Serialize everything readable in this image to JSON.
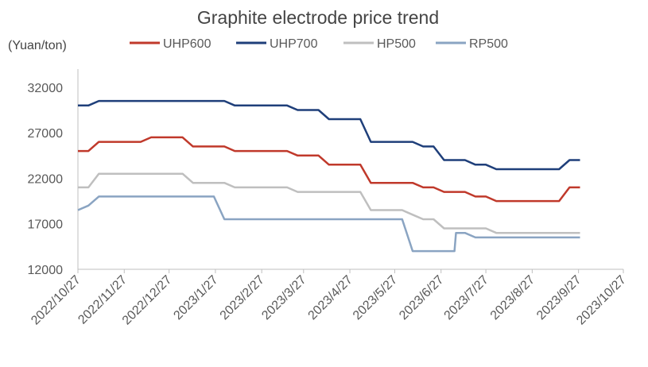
{
  "chart_data": {
    "type": "line",
    "title": "Graphite electrode price trend",
    "ylabel": "(Yuan/ton)",
    "xlabel": "",
    "ylim": [
      12000,
      34000
    ],
    "yticks": [
      12000,
      17000,
      22000,
      27000,
      32000
    ],
    "xticks": [
      "2022/10/27",
      "2022/11/27",
      "2022/12/27",
      "2023/1/27",
      "2023/2/27",
      "2023/3/27",
      "2023/4/27",
      "2023/5/27",
      "2023/6/27",
      "2023/7/27",
      "2023/8/27",
      "2023/9/27",
      "2023/10/27"
    ],
    "legend": "top",
    "grid": false,
    "series": [
      {
        "name": "UHP600",
        "color": "#c0392b",
        "points": [
          [
            "2022/10/27",
            25000
          ],
          [
            "2022/11/3",
            25000
          ],
          [
            "2022/11/10",
            26000
          ],
          [
            "2022/11/17",
            26000
          ],
          [
            "2022/11/24",
            26000
          ],
          [
            "2022/12/1",
            26000
          ],
          [
            "2022/12/8",
            26000
          ],
          [
            "2022/12/15",
            26500
          ],
          [
            "2022/12/22",
            26500
          ],
          [
            "2022/12/29",
            26500
          ],
          [
            "2023/1/5",
            26500
          ],
          [
            "2023/1/12",
            25500
          ],
          [
            "2023/1/19",
            25500
          ],
          [
            "2023/1/26",
            25500
          ],
          [
            "2023/2/2",
            25500
          ],
          [
            "2023/2/9",
            25000
          ],
          [
            "2023/2/16",
            25000
          ],
          [
            "2023/2/23",
            25000
          ],
          [
            "2023/3/2",
            25000
          ],
          [
            "2023/3/9",
            25000
          ],
          [
            "2023/3/16",
            25000
          ],
          [
            "2023/3/23",
            24500
          ],
          [
            "2023/3/30",
            24500
          ],
          [
            "2023/4/6",
            24500
          ],
          [
            "2023/4/13",
            23500
          ],
          [
            "2023/4/20",
            23500
          ],
          [
            "2023/4/27",
            23500
          ],
          [
            "2023/5/4",
            23500
          ],
          [
            "2023/5/11",
            21500
          ],
          [
            "2023/5/18",
            21500
          ],
          [
            "2023/5/25",
            21500
          ],
          [
            "2023/6/1",
            21500
          ],
          [
            "2023/6/8",
            21500
          ],
          [
            "2023/6/15",
            21000
          ],
          [
            "2023/6/22",
            21000
          ],
          [
            "2023/6/29",
            20500
          ],
          [
            "2023/7/6",
            20500
          ],
          [
            "2023/7/13",
            20500
          ],
          [
            "2023/7/20",
            20000
          ],
          [
            "2023/7/27",
            20000
          ],
          [
            "2023/8/3",
            19500
          ],
          [
            "2023/8/10",
            19500
          ],
          [
            "2023/8/17",
            19500
          ],
          [
            "2023/8/24",
            19500
          ],
          [
            "2023/8/31",
            19500
          ],
          [
            "2023/9/7",
            19500
          ],
          [
            "2023/9/14",
            19500
          ],
          [
            "2023/9/21",
            21000
          ],
          [
            "2023/9/28",
            21000
          ]
        ]
      },
      {
        "name": "UHP700",
        "color": "#1f3f7a",
        "points": [
          [
            "2022/10/27",
            30000
          ],
          [
            "2022/11/3",
            30000
          ],
          [
            "2022/11/10",
            30500
          ],
          [
            "2022/11/17",
            30500
          ],
          [
            "2022/11/24",
            30500
          ],
          [
            "2022/12/1",
            30500
          ],
          [
            "2022/12/8",
            30500
          ],
          [
            "2022/12/15",
            30500
          ],
          [
            "2022/12/22",
            30500
          ],
          [
            "2022/12/29",
            30500
          ],
          [
            "2023/1/5",
            30500
          ],
          [
            "2023/1/12",
            30500
          ],
          [
            "2023/1/19",
            30500
          ],
          [
            "2023/1/26",
            30500
          ],
          [
            "2023/2/2",
            30500
          ],
          [
            "2023/2/9",
            30000
          ],
          [
            "2023/2/16",
            30000
          ],
          [
            "2023/2/23",
            30000
          ],
          [
            "2023/3/2",
            30000
          ],
          [
            "2023/3/9",
            30000
          ],
          [
            "2023/3/16",
            30000
          ],
          [
            "2023/3/23",
            29500
          ],
          [
            "2023/3/30",
            29500
          ],
          [
            "2023/4/6",
            29500
          ],
          [
            "2023/4/13",
            28500
          ],
          [
            "2023/4/20",
            28500
          ],
          [
            "2023/4/27",
            28500
          ],
          [
            "2023/5/4",
            28500
          ],
          [
            "2023/5/11",
            26000
          ],
          [
            "2023/5/18",
            26000
          ],
          [
            "2023/5/25",
            26000
          ],
          [
            "2023/6/1",
            26000
          ],
          [
            "2023/6/8",
            26000
          ],
          [
            "2023/6/15",
            25500
          ],
          [
            "2023/6/22",
            25500
          ],
          [
            "2023/6/29",
            24000
          ],
          [
            "2023/7/6",
            24000
          ],
          [
            "2023/7/13",
            24000
          ],
          [
            "2023/7/20",
            23500
          ],
          [
            "2023/7/27",
            23500
          ],
          [
            "2023/8/3",
            23000
          ],
          [
            "2023/8/10",
            23000
          ],
          [
            "2023/8/17",
            23000
          ],
          [
            "2023/8/24",
            23000
          ],
          [
            "2023/8/31",
            23000
          ],
          [
            "2023/9/7",
            23000
          ],
          [
            "2023/9/14",
            23000
          ],
          [
            "2023/9/21",
            24000
          ],
          [
            "2023/9/28",
            24000
          ]
        ]
      },
      {
        "name": "HP500",
        "color": "#bfbfbf",
        "points": [
          [
            "2022/10/27",
            21000
          ],
          [
            "2022/11/3",
            21000
          ],
          [
            "2022/11/10",
            22500
          ],
          [
            "2022/11/17",
            22500
          ],
          [
            "2022/11/24",
            22500
          ],
          [
            "2022/12/1",
            22500
          ],
          [
            "2022/12/8",
            22500
          ],
          [
            "2022/12/15",
            22500
          ],
          [
            "2022/12/22",
            22500
          ],
          [
            "2022/12/29",
            22500
          ],
          [
            "2023/1/5",
            22500
          ],
          [
            "2023/1/12",
            21500
          ],
          [
            "2023/1/19",
            21500
          ],
          [
            "2023/1/26",
            21500
          ],
          [
            "2023/2/2",
            21500
          ],
          [
            "2023/2/9",
            21000
          ],
          [
            "2023/2/16",
            21000
          ],
          [
            "2023/2/23",
            21000
          ],
          [
            "2023/3/2",
            21000
          ],
          [
            "2023/3/9",
            21000
          ],
          [
            "2023/3/16",
            21000
          ],
          [
            "2023/3/23",
            20500
          ],
          [
            "2023/3/30",
            20500
          ],
          [
            "2023/4/6",
            20500
          ],
          [
            "2023/4/13",
            20500
          ],
          [
            "2023/4/20",
            20500
          ],
          [
            "2023/4/27",
            20500
          ],
          [
            "2023/5/4",
            20500
          ],
          [
            "2023/5/11",
            18500
          ],
          [
            "2023/5/18",
            18500
          ],
          [
            "2023/5/25",
            18500
          ],
          [
            "2023/6/1",
            18500
          ],
          [
            "2023/6/8",
            18000
          ],
          [
            "2023/6/15",
            17500
          ],
          [
            "2023/6/22",
            17500
          ],
          [
            "2023/6/29",
            16500
          ],
          [
            "2023/7/6",
            16500
          ],
          [
            "2023/7/13",
            16500
          ],
          [
            "2023/7/20",
            16500
          ],
          [
            "2023/7/27",
            16500
          ],
          [
            "2023/8/3",
            16000
          ],
          [
            "2023/8/10",
            16000
          ],
          [
            "2023/8/17",
            16000
          ],
          [
            "2023/8/24",
            16000
          ],
          [
            "2023/8/31",
            16000
          ],
          [
            "2023/9/7",
            16000
          ],
          [
            "2023/9/14",
            16000
          ],
          [
            "2023/9/21",
            16000
          ],
          [
            "2023/9/28",
            16000
          ]
        ]
      },
      {
        "name": "RP500",
        "color": "#8aa4c2",
        "points": [
          [
            "2022/10/27",
            18500
          ],
          [
            "2022/11/3",
            19000
          ],
          [
            "2022/11/10",
            20000
          ],
          [
            "2022/11/17",
            20000
          ],
          [
            "2022/11/24",
            20000
          ],
          [
            "2022/12/1",
            20000
          ],
          [
            "2022/12/8",
            20000
          ],
          [
            "2022/12/15",
            20000
          ],
          [
            "2022/12/22",
            20000
          ],
          [
            "2022/12/29",
            20000
          ],
          [
            "2023/1/5",
            20000
          ],
          [
            "2023/1/12",
            20000
          ],
          [
            "2023/1/19",
            20000
          ],
          [
            "2023/1/26",
            20000
          ],
          [
            "2023/2/2",
            17500
          ],
          [
            "2023/2/9",
            17500
          ],
          [
            "2023/2/16",
            17500
          ],
          [
            "2023/2/23",
            17500
          ],
          [
            "2023/3/2",
            17500
          ],
          [
            "2023/3/9",
            17500
          ],
          [
            "2023/3/16",
            17500
          ],
          [
            "2023/3/23",
            17500
          ],
          [
            "2023/3/30",
            17500
          ],
          [
            "2023/4/6",
            17500
          ],
          [
            "2023/4/13",
            17500
          ],
          [
            "2023/4/20",
            17500
          ],
          [
            "2023/4/27",
            17500
          ],
          [
            "2023/5/4",
            17500
          ],
          [
            "2023/5/11",
            17500
          ],
          [
            "2023/5/18",
            17500
          ],
          [
            "2023/5/25",
            17500
          ],
          [
            "2023/6/1",
            17500
          ],
          [
            "2023/6/8",
            14000
          ],
          [
            "2023/6/15",
            14000
          ],
          [
            "2023/6/22",
            14000
          ],
          [
            "2023/6/29",
            14000
          ],
          [
            "2023/7/6",
            14000
          ],
          [
            "2023/7/7",
            16000
          ],
          [
            "2023/7/13",
            16000
          ],
          [
            "2023/7/20",
            15500
          ],
          [
            "2023/7/27",
            15500
          ],
          [
            "2023/8/3",
            15500
          ],
          [
            "2023/8/10",
            15500
          ],
          [
            "2023/8/17",
            15500
          ],
          [
            "2023/8/24",
            15500
          ],
          [
            "2023/8/31",
            15500
          ],
          [
            "2023/9/7",
            15500
          ],
          [
            "2023/9/14",
            15500
          ],
          [
            "2023/9/21",
            15500
          ],
          [
            "2023/9/28",
            15500
          ]
        ]
      }
    ]
  }
}
